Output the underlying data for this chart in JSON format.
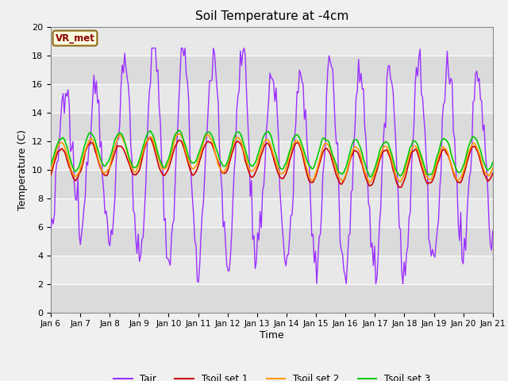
{
  "title": "Soil Temperature at -4cm",
  "xlabel": "Time",
  "ylabel": "Temperature (C)",
  "ylim": [
    0,
    20
  ],
  "xlim_days": [
    0,
    15
  ],
  "bg_color": "#e8e8e8",
  "grid_color": "#ffffff",
  "colors": {
    "Tair": "#9b30ff",
    "Tsoil1": "#cc0000",
    "Tsoil2": "#ff9900",
    "Tsoil3": "#00cc00"
  },
  "legend_labels": [
    "Tair",
    "Tsoil set 1",
    "Tsoil set 2",
    "Tsoil set 3"
  ],
  "xtick_labels": [
    "Jan 6",
    "Jan 7",
    "Jan 8",
    "Jan 9",
    "Jan 10",
    "Jan 11",
    "Jan 12",
    "Jan 13",
    "Jan 14",
    "Jan 15",
    "Jan 16",
    "Jan 17",
    "Jan 18",
    "Jan 19",
    "Jan 20",
    "Jan 21"
  ],
  "annotation_text": "VR_met",
  "annotation_color": "#8b0000",
  "annotation_bg": "#ffffe0",
  "annotation_border": "#8b6914"
}
